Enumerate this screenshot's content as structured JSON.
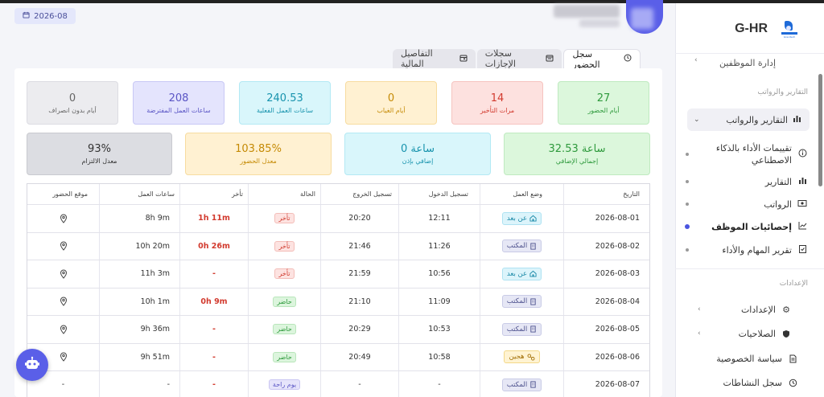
{
  "header": {
    "date": "2026-08"
  },
  "sidebar": {
    "brand": "G-HR",
    "brand_logo_text": "Gravitech",
    "top_item": "إدارة الموظفين",
    "section_reports": "التقارير والرواتب",
    "group_label": "التقارير والرواتب",
    "sub_items": [
      {
        "label": "تقييمات الأداء بالذكاء الاصطناعي",
        "icon": "info-circle-icon",
        "active": false
      },
      {
        "label": "التقارير",
        "icon": "chart-bars-icon",
        "active": false
      },
      {
        "label": "الرواتب",
        "icon": "money-icon",
        "active": false
      },
      {
        "label": "إحصائيات الموظف",
        "icon": "line-chart-icon",
        "active": true
      },
      {
        "label": "تقرير المهام والأداء",
        "icon": "clipboard-check-icon",
        "active": false
      }
    ],
    "section_settings": "الإعدادات",
    "settings_items": [
      {
        "label": "الإعدادات",
        "icon": "gear-icon",
        "chevron": true
      },
      {
        "label": "الصلاحيات",
        "icon": "shield-icon",
        "chevron": true
      },
      {
        "label": "سياسة الخصوصية",
        "icon": "document-icon",
        "chevron": false
      },
      {
        "label": "سجل النشاطات",
        "icon": "history-icon",
        "chevron": false
      }
    ]
  },
  "tabs": [
    {
      "label": "سجل الحضور",
      "icon": "clock-icon",
      "active": true
    },
    {
      "label": "سجلات الإجازات",
      "icon": "calendar-icon",
      "active": false
    },
    {
      "label": "التفاصيل المالية",
      "icon": "wallet-icon",
      "active": false
    }
  ],
  "stats_row1": [
    {
      "value": "27",
      "label": "أيام الحضور",
      "color": "green"
    },
    {
      "value": "14",
      "label": "مرات التأخير",
      "color": "red"
    },
    {
      "value": "0",
      "label": "أيام الغياب",
      "color": "yellow"
    },
    {
      "value": "240.53",
      "label": "ساعات العمل الفعلية",
      "color": "cyan"
    },
    {
      "value": "208",
      "label": "ساعات العمل المفترضة",
      "color": "violet"
    },
    {
      "value": "0",
      "label": "أيام بدون انصراف",
      "color": "gray"
    }
  ],
  "stats_row2": [
    {
      "value": "32.53 ساعة",
      "label": "إجمالي الإضافي",
      "color": "green"
    },
    {
      "value": "0 ساعة",
      "label": "إضافي بإذن",
      "color": "cyan"
    },
    {
      "value": "103.85%",
      "label": "معدل الحضور",
      "color": "yellow"
    },
    {
      "value": "93%",
      "label": "معدل الالتزام",
      "color": "dgray"
    }
  ],
  "table": {
    "headers": [
      "التاريخ",
      "وضع العمل",
      "تسجيل الدخول",
      "تسجيل الخروج",
      "الحالة",
      "تأخر",
      "ساعات العمل",
      "موقع الحضور"
    ],
    "rows": [
      {
        "date": "2026-08-01",
        "mode": "عن بعد",
        "mode_type": "remote",
        "in": "12:11",
        "out": "20:20",
        "status": "تأخر",
        "status_type": "late",
        "late": "1h 11m",
        "hours": "8h 9m",
        "loc": "pin"
      },
      {
        "date": "2026-08-02",
        "mode": "المكتب",
        "mode_type": "office",
        "in": "11:26",
        "out": "21:46",
        "status": "تأخر",
        "status_type": "late",
        "late": "0h 26m",
        "hours": "10h 20m",
        "loc": "pin"
      },
      {
        "date": "2026-08-03",
        "mode": "عن بعد",
        "mode_type": "remote",
        "in": "10:56",
        "out": "21:59",
        "status": "تأخر",
        "status_type": "late",
        "late": "-",
        "hours": "11h 3m",
        "loc": "pin"
      },
      {
        "date": "2026-08-04",
        "mode": "المكتب",
        "mode_type": "office",
        "in": "11:09",
        "out": "21:10",
        "status": "حاضر",
        "status_type": "present",
        "late": "0h 9m",
        "hours": "10h 1m",
        "loc": "pin"
      },
      {
        "date": "2026-08-05",
        "mode": "المكتب",
        "mode_type": "office",
        "in": "10:53",
        "out": "20:29",
        "status": "حاضر",
        "status_type": "present",
        "late": "-",
        "hours": "9h 36m",
        "loc": "pin"
      },
      {
        "date": "2026-08-06",
        "mode": "هجين",
        "mode_type": "hybrid",
        "in": "10:58",
        "out": "20:49",
        "status": "حاضر",
        "status_type": "present",
        "late": "-",
        "hours": "9h 51m",
        "loc": "pin"
      },
      {
        "date": "2026-08-07",
        "mode": "المكتب",
        "mode_type": "office",
        "in": "-",
        "out": "-",
        "status": "يوم راحة",
        "status_type": "extra",
        "late": "-",
        "hours": "-",
        "loc": "-"
      }
    ]
  },
  "colors": {
    "accent": "#5a5fe8",
    "late": "#d23a2e",
    "present": "#2f9a3d"
  }
}
